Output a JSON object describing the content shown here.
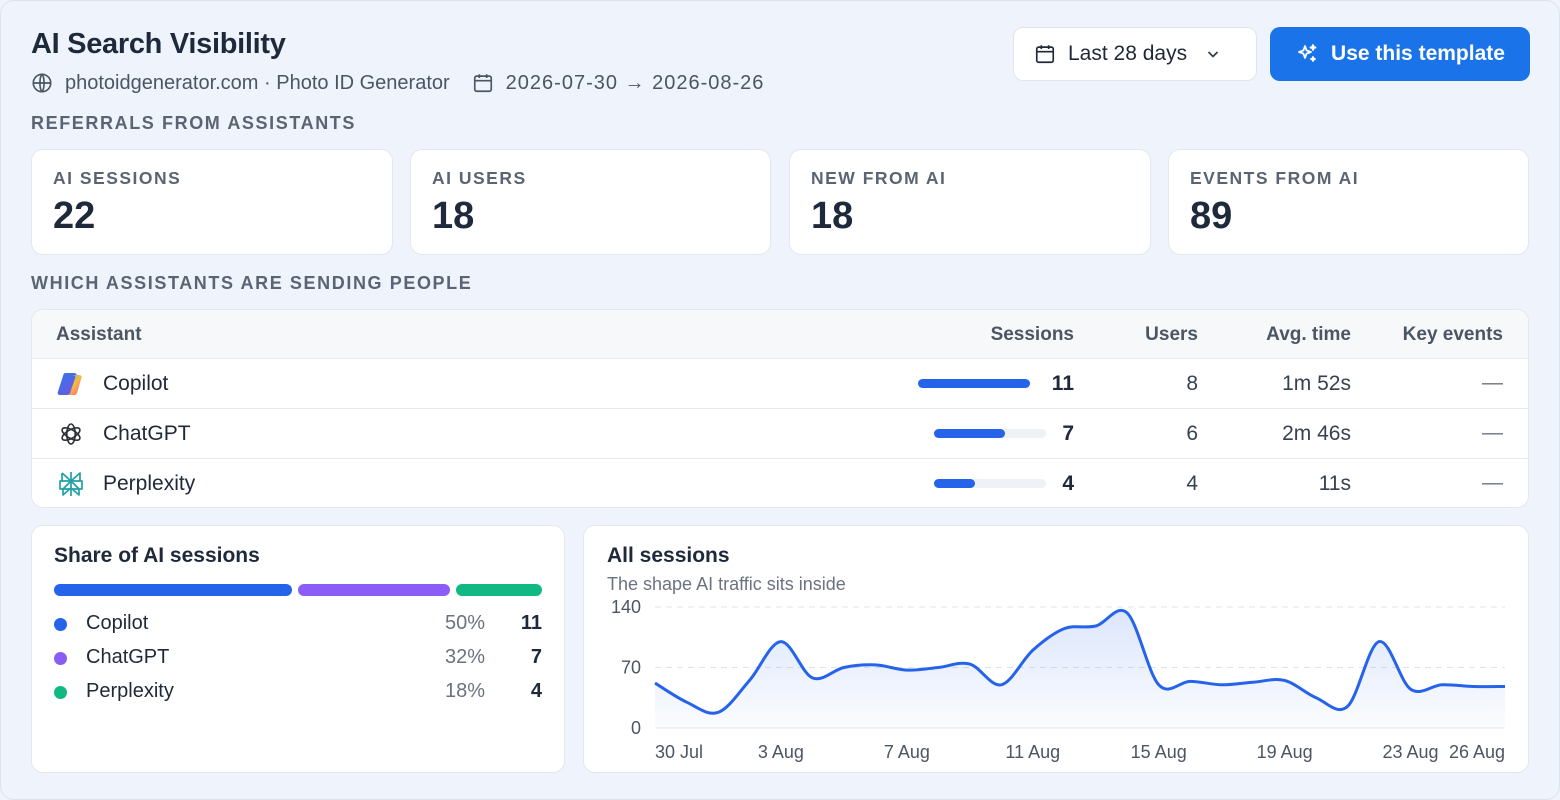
{
  "header": {
    "title": "AI Search Visibility",
    "site": "photoidgenerator.com · Photo ID Generator",
    "date_range": "2026-07-30 → 2026-08-26",
    "date_button_label": "Last 28 days",
    "template_button_label": "Use this template"
  },
  "sections": {
    "referrals": "REFERRALS FROM ASSISTANTS",
    "assistants": "WHICH ASSISTANTS ARE SENDING PEOPLE"
  },
  "kpis": [
    {
      "label": "AI SESSIONS",
      "value": "22"
    },
    {
      "label": "AI USERS",
      "value": "18"
    },
    {
      "label": "NEW FROM AI",
      "value": "18"
    },
    {
      "label": "EVENTS FROM AI",
      "value": "89"
    }
  ],
  "table": {
    "headers": {
      "assistant": "Assistant",
      "sessions": "Sessions",
      "users": "Users",
      "avg_time": "Avg. time",
      "key_events": "Key events"
    },
    "rows": [
      {
        "name": "Copilot",
        "icon": "copilot-logo",
        "sessions": "11",
        "bar_fraction": 1.0,
        "users": "8",
        "avg_time": "1m 52s",
        "key_events": "—"
      },
      {
        "name": "ChatGPT",
        "icon": "chatgpt-logo",
        "sessions": "7",
        "bar_fraction": 0.636,
        "users": "6",
        "avg_time": "2m 46s",
        "key_events": "—"
      },
      {
        "name": "Perplexity",
        "icon": "perplexity-logo",
        "sessions": "4",
        "bar_fraction": 0.364,
        "users": "4",
        "avg_time": "11s",
        "key_events": "—"
      }
    ],
    "bar_color": "#2563eb"
  },
  "share": {
    "title": "Share of AI sessions",
    "items": [
      {
        "name": "Copilot",
        "pct": "50%",
        "count": "11",
        "color": "#2563eb"
      },
      {
        "name": "ChatGPT",
        "pct": "32%",
        "count": "7",
        "color": "#8b5cf6"
      },
      {
        "name": "Perplexity",
        "pct": "18%",
        "count": "4",
        "color": "#10b981"
      }
    ]
  },
  "sessions_chart": {
    "title": "All sessions",
    "subtitle": "The shape AI traffic sits inside"
  },
  "chart_data": {
    "type": "area",
    "title": "All sessions",
    "subtitle": "The shape AI traffic sits inside",
    "xlabel": "",
    "ylabel": "",
    "ylim": [
      0,
      140
    ],
    "yticks": [
      "140",
      "70",
      "0"
    ],
    "grid": true,
    "x": [
      "30 Jul",
      "31 Jul",
      "1 Aug",
      "2 Aug",
      "3 Aug",
      "4 Aug",
      "5 Aug",
      "6 Aug",
      "7 Aug",
      "8 Aug",
      "9 Aug",
      "10 Aug",
      "11 Aug",
      "12 Aug",
      "13 Aug",
      "14 Aug",
      "15 Aug",
      "16 Aug",
      "17 Aug",
      "18 Aug",
      "19 Aug",
      "20 Aug",
      "21 Aug",
      "22 Aug",
      "23 Aug",
      "24 Aug",
      "25 Aug",
      "26 Aug"
    ],
    "xtick_labels": [
      "30 Jul",
      "3 Aug",
      "7 Aug",
      "11 Aug",
      "15 Aug",
      "19 Aug",
      "23 Aug",
      "26 Aug"
    ],
    "series": [
      {
        "values": [
          52,
          30,
          18,
          55,
          100,
          58,
          70,
          73,
          67,
          70,
          74,
          50,
          90,
          115,
          118,
          133,
          50,
          54,
          50,
          53,
          55,
          35,
          25,
          100,
          45,
          50,
          48,
          48
        ]
      }
    ],
    "color": "#2563eb"
  }
}
